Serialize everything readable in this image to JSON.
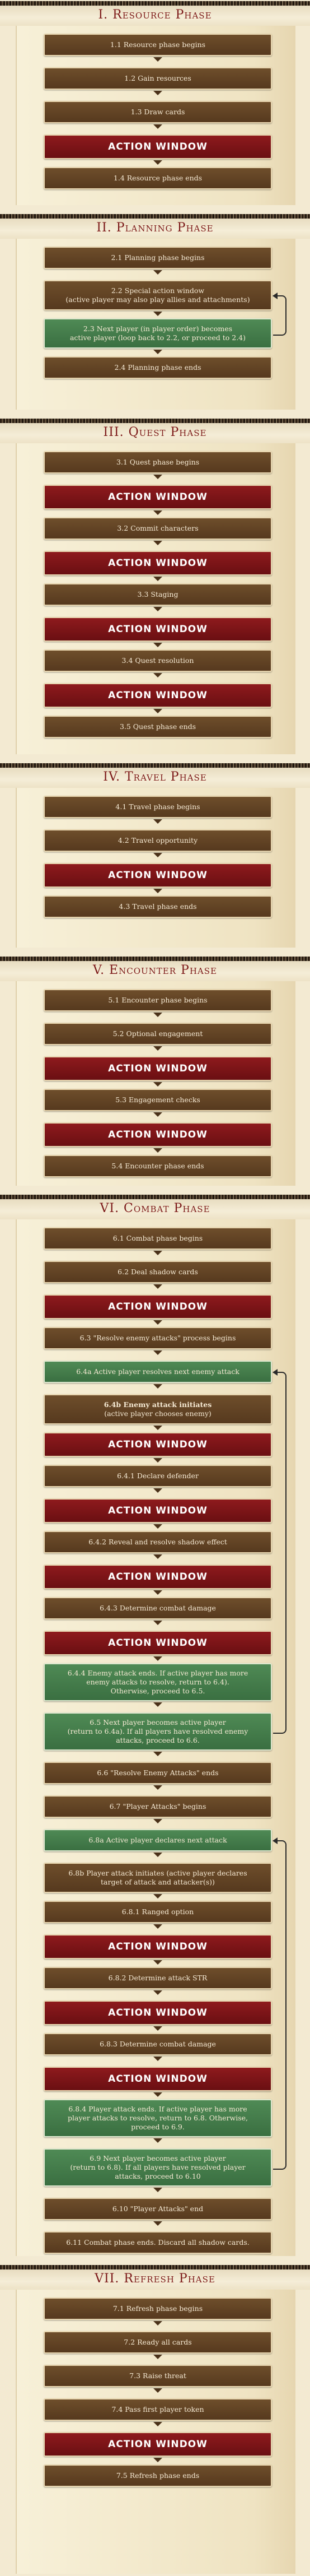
{
  "colors": {
    "title": "#7a1818",
    "step": "#5e4124",
    "action": "#7d1417",
    "green": "#447c4b",
    "background": "#f3ead2"
  },
  "phases": [
    {
      "title": "I. Resource Phase",
      "steps": [
        {
          "label": "1.1 Resource phase begins",
          "kind": "step"
        },
        {
          "label": "1.2 Gain resources",
          "kind": "step"
        },
        {
          "label": "1.3 Draw cards",
          "kind": "step"
        },
        {
          "label": "ACTION WINDOW",
          "kind": "action"
        },
        {
          "label": "1.4 Resource phase ends",
          "kind": "step"
        }
      ]
    },
    {
      "title": "II. Planning Phase",
      "steps": [
        {
          "label": "2.1 Planning phase begins",
          "kind": "step"
        },
        {
          "label": "2.2 Special action window\n(active player may also play allies and attachments)",
          "kind": "step"
        },
        {
          "label": "2.3 Next player (in player order) becomes\nactive player (loop back to 2.2, or proceed to 2.4)",
          "kind": "green"
        },
        {
          "label": "2.4 Planning phase ends",
          "kind": "step"
        }
      ]
    },
    {
      "title": "III. Quest Phase",
      "steps": [
        {
          "label": "3.1 Quest phase begins",
          "kind": "step"
        },
        {
          "label": "ACTION WINDOW",
          "kind": "action"
        },
        {
          "label": "3.2 Commit characters",
          "kind": "step"
        },
        {
          "label": "ACTION WINDOW",
          "kind": "action"
        },
        {
          "label": "3.3 Staging",
          "kind": "step"
        },
        {
          "label": "ACTION WINDOW",
          "kind": "action"
        },
        {
          "label": "3.4 Quest resolution",
          "kind": "step"
        },
        {
          "label": "ACTION WINDOW",
          "kind": "action"
        },
        {
          "label": "3.5 Quest phase ends",
          "kind": "step"
        }
      ]
    },
    {
      "title": "IV. Travel Phase",
      "steps": [
        {
          "label": "4.1 Travel phase begins",
          "kind": "step"
        },
        {
          "label": "4.2 Travel opportunity",
          "kind": "step"
        },
        {
          "label": "ACTION WINDOW",
          "kind": "action"
        },
        {
          "label": "4.3 Travel phase ends",
          "kind": "step"
        }
      ]
    },
    {
      "title": "V. Encounter Phase",
      "steps": [
        {
          "label": "5.1 Encounter phase begins",
          "kind": "step"
        },
        {
          "label": "5.2 Optional engagement",
          "kind": "step"
        },
        {
          "label": "ACTION WINDOW",
          "kind": "action"
        },
        {
          "label": "5.3 Engagement checks",
          "kind": "step"
        },
        {
          "label": "ACTION WINDOW",
          "kind": "action"
        },
        {
          "label": "5.4 Encounter phase ends",
          "kind": "step"
        }
      ]
    },
    {
      "title": "VI. Combat Phase",
      "steps": [
        {
          "label": "6.1 Combat phase begins",
          "kind": "step"
        },
        {
          "label": "6.2 Deal shadow cards",
          "kind": "step"
        },
        {
          "label": "ACTION WINDOW",
          "kind": "action"
        },
        {
          "label": "6.3 \"Resolve enemy attacks\" process begins",
          "kind": "step"
        },
        {
          "label": "6.4a Active player resolves next enemy attack",
          "kind": "green"
        },
        {
          "label": "6.4b Enemy attack initiates\n(active player chooses enemy)",
          "kind": "step-bold"
        },
        {
          "label": "ACTION WINDOW",
          "kind": "action"
        },
        {
          "label": "6.4.1 Declare defender",
          "kind": "step"
        },
        {
          "label": "ACTION WINDOW",
          "kind": "action"
        },
        {
          "label": "6.4.2 Reveal and resolve shadow effect",
          "kind": "step"
        },
        {
          "label": "ACTION WINDOW",
          "kind": "action"
        },
        {
          "label": "6.4.3 Determine combat damage",
          "kind": "step"
        },
        {
          "label": "ACTION WINDOW",
          "kind": "action"
        },
        {
          "label": "6.4.4 Enemy attack ends. If active player has more\nenemy attacks to resolve, return to 6.4).\nOtherwise, proceed to 6.5.",
          "kind": "green"
        },
        {
          "label": "6.5 Next player becomes active player\n(return to 6.4a). If all players have resolved enemy\nattacks, proceed to 6.6.",
          "kind": "green"
        },
        {
          "label": "6.6 \"Resolve Enemy Attacks\" ends",
          "kind": "step"
        },
        {
          "label": "6.7 \"Player Attacks\" begins",
          "kind": "step"
        },
        {
          "label": "6.8a Active player declares next attack",
          "kind": "green"
        },
        {
          "label": "6.8b Player attack initiates (active player declares\ntarget of attack and attacker(s))",
          "kind": "step"
        },
        {
          "label": "6.8.1 Ranged option",
          "kind": "step"
        },
        {
          "label": "ACTION WINDOW",
          "kind": "action"
        },
        {
          "label": "6.8.2 Determine attack STR",
          "kind": "step"
        },
        {
          "label": "ACTION WINDOW",
          "kind": "action"
        },
        {
          "label": "6.8.3 Determine combat damage",
          "kind": "step"
        },
        {
          "label": "ACTION WINDOW",
          "kind": "action"
        },
        {
          "label": "6.8.4 Player attack ends. If active player has more\nplayer attacks to resolve, return to 6.8. Otherwise,\nproceed to 6.9.",
          "kind": "green"
        },
        {
          "label": "6.9 Next player becomes active player\n(return to 6.8). If all players have resolved player\nattacks, proceed to 6.10",
          "kind": "green"
        },
        {
          "label": "6.10 \"Player Attacks\" end",
          "kind": "step"
        },
        {
          "label": "6.11 Combat phase ends. Discard all shadow cards.",
          "kind": "step"
        }
      ]
    },
    {
      "title": "VII. Refresh Phase",
      "steps": [
        {
          "label": "7.1 Refresh phase begins",
          "kind": "step"
        },
        {
          "label": "7.2 Ready all cards",
          "kind": "step"
        },
        {
          "label": "7.3 Raise threat",
          "kind": "step"
        },
        {
          "label": "7.4 Pass first player token",
          "kind": "step"
        },
        {
          "label": "ACTION WINDOW",
          "kind": "action"
        },
        {
          "label": "7.5 Refresh phase ends",
          "kind": "step"
        }
      ]
    }
  ]
}
